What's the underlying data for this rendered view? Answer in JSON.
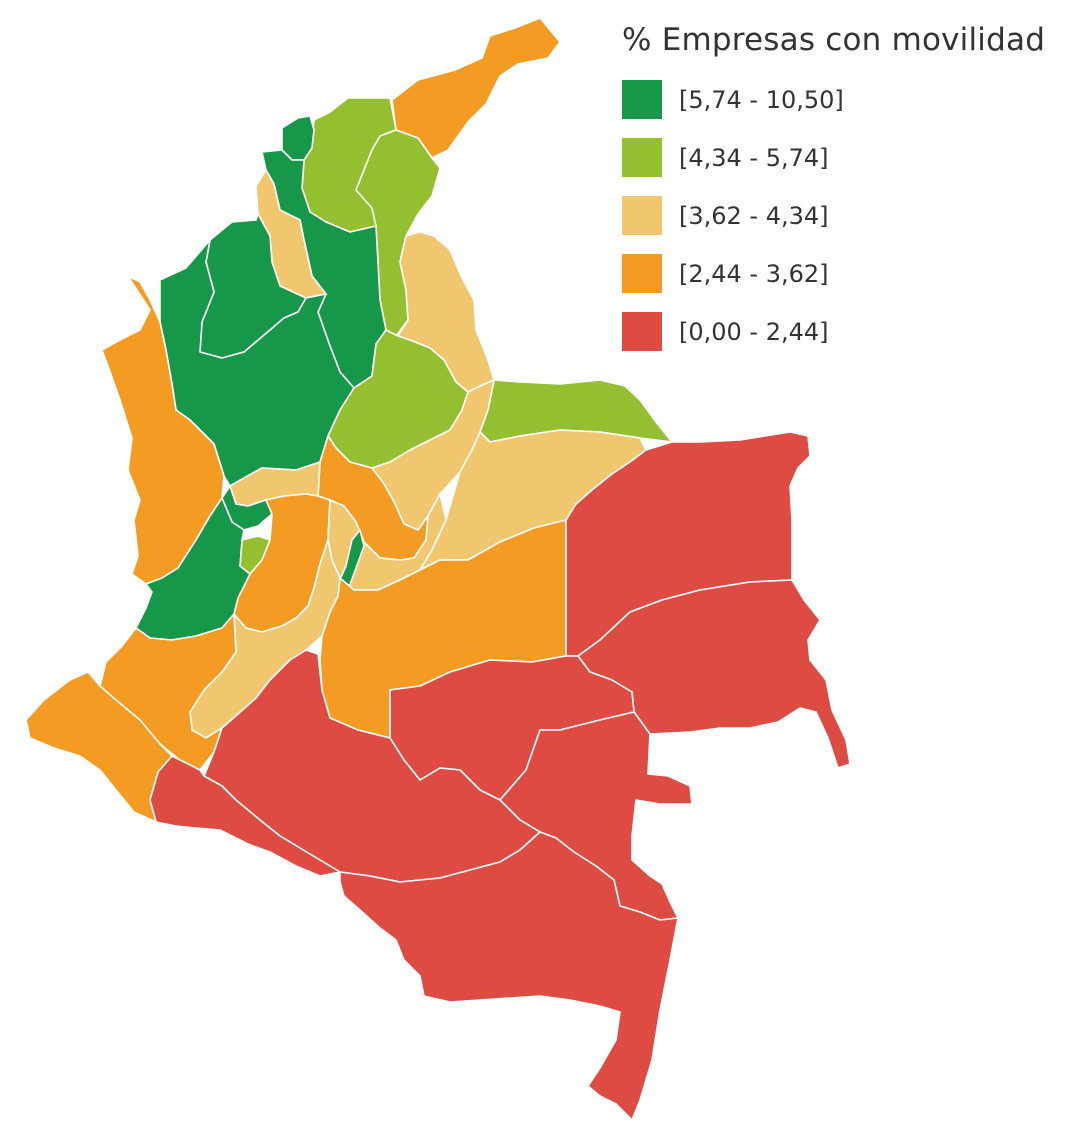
{
  "legend": {
    "title": "% Empresas con movilidad",
    "classes": [
      {
        "label": "[5,74 - 10,50]",
        "color": "#17974a"
      },
      {
        "label": "[4,34 - 5,74]",
        "color": "#93bf30"
      },
      {
        "label": "[3,62 - 4,34]",
        "color": "#f0c76f"
      },
      {
        "label": "[2,44 - 3,62]",
        "color": "#f39b22"
      },
      {
        "label": "[0,00 - 2,44]",
        "color": "#dd4b43"
      }
    ]
  },
  "map": {
    "regions": [
      {
        "id": "la-guajira",
        "class": 3
      },
      {
        "id": "magdalena",
        "class": 1
      },
      {
        "id": "cesar",
        "class": 1
      },
      {
        "id": "atlantico",
        "class": 0
      },
      {
        "id": "bolivar",
        "class": 0
      },
      {
        "id": "sucre",
        "class": 2
      },
      {
        "id": "cordoba",
        "class": 0
      },
      {
        "id": "norte-de-santander",
        "class": 2
      },
      {
        "id": "santander",
        "class": 1
      },
      {
        "id": "antioquia",
        "class": 0
      },
      {
        "id": "choco",
        "class": 3
      },
      {
        "id": "arauca",
        "class": 1
      },
      {
        "id": "boyaca",
        "class": 3
      },
      {
        "id": "casanare",
        "class": 2
      },
      {
        "id": "caldas",
        "class": 2
      },
      {
        "id": "risaralda",
        "class": 0
      },
      {
        "id": "quindio",
        "class": 1
      },
      {
        "id": "cundinamarca",
        "class": 2
      },
      {
        "id": "bogota",
        "class": 0
      },
      {
        "id": "valle-del-cauca",
        "class": 0
      },
      {
        "id": "tolima",
        "class": 3
      },
      {
        "id": "huila",
        "class": 3
      },
      {
        "id": "cauca",
        "class": 2
      },
      {
        "id": "narino",
        "class": 3
      },
      {
        "id": "meta",
        "class": 2
      },
      {
        "id": "vichada",
        "class": 4
      },
      {
        "id": "guaviare",
        "class": 4
      },
      {
        "id": "guainia",
        "class": 4
      },
      {
        "id": "vaupes",
        "class": 4
      },
      {
        "id": "caqueta",
        "class": 4
      },
      {
        "id": "putumayo",
        "class": 4
      },
      {
        "id": "amazonas",
        "class": 4
      }
    ]
  }
}
